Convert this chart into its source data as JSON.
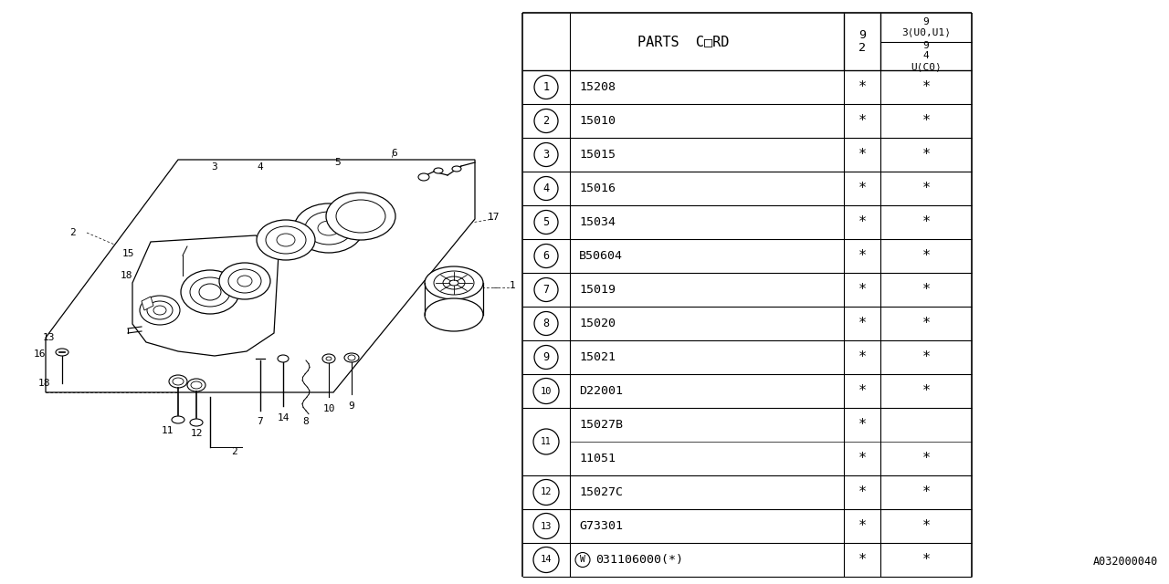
{
  "bg_color": "#ffffff",
  "rows": [
    {
      "num": "1",
      "code": "15208",
      "c1": "*",
      "c2": "*",
      "sub": false
    },
    {
      "num": "2",
      "code": "15010",
      "c1": "*",
      "c2": "*",
      "sub": false
    },
    {
      "num": "3",
      "code": "15015",
      "c1": "*",
      "c2": "*",
      "sub": false
    },
    {
      "num": "4",
      "code": "15016",
      "c1": "*",
      "c2": "*",
      "sub": false
    },
    {
      "num": "5",
      "code": "15034",
      "c1": "*",
      "c2": "*",
      "sub": false
    },
    {
      "num": "6",
      "code": "B50604",
      "c1": "*",
      "c2": "*",
      "sub": false
    },
    {
      "num": "7",
      "code": "15019",
      "c1": "*",
      "c2": "*",
      "sub": false
    },
    {
      "num": "8",
      "code": "15020",
      "c1": "*",
      "c2": "*",
      "sub": false
    },
    {
      "num": "9",
      "code": "15021",
      "c1": "*",
      "c2": "*",
      "sub": false
    },
    {
      "num": "10",
      "code": "D22001",
      "c1": "*",
      "c2": "*",
      "sub": false
    },
    {
      "num": "11",
      "code": "15027B",
      "c1": "*",
      "c2": "",
      "sub": true,
      "subcode": "11051",
      "sc1": "*",
      "sc2": "*"
    },
    {
      "num": "12",
      "code": "15027C",
      "c1": "*",
      "c2": "*",
      "sub": false
    },
    {
      "num": "13",
      "code": "G73301",
      "c1": "*",
      "c2": "*",
      "sub": false
    },
    {
      "num": "14",
      "code": "031106000(*)",
      "c1": "*",
      "c2": "*",
      "sub": false,
      "w_circle": true
    }
  ],
  "footer_code": "A032000040",
  "line_color": "#000000",
  "text_color": "#000000"
}
